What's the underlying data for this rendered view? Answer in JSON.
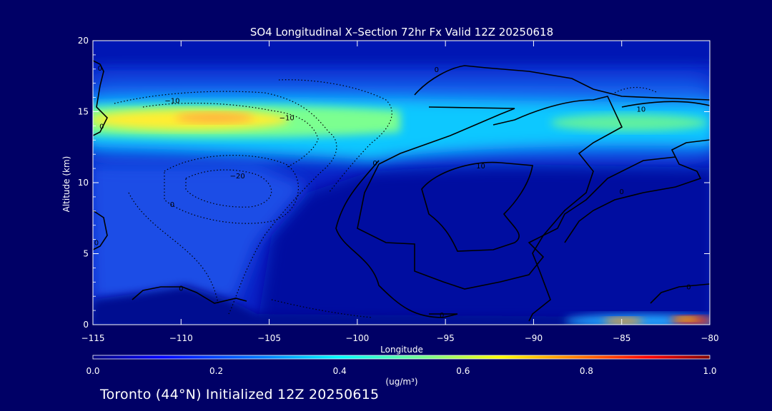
{
  "chart_data": {
    "type": "heatmap",
    "title": "SO4 Longitudinal X–Section 72hr  Fx Valid 12Z 20250618",
    "xlabel": "Longitude",
    "ylabel": "Altitude (km)",
    "xlim": [
      -115,
      -80
    ],
    "ylim": [
      0,
      20
    ],
    "x_ticks": [
      "−115",
      "−110",
      "−105",
      "−100",
      "−95",
      "−90",
      "−85",
      "−80"
    ],
    "x_tick_values": [
      -115,
      -110,
      -105,
      -100,
      -95,
      -90,
      -85,
      -80
    ],
    "y_ticks": [
      "0",
      "5",
      "10",
      "15",
      "20"
    ],
    "y_tick_values": [
      0,
      5,
      10,
      15,
      20
    ],
    "colorbar": {
      "min": 0.0,
      "max": 1.0,
      "label": "(ug/m³)",
      "ticks": [
        "0.0",
        "0.2",
        "0.4",
        "0.6",
        "0.8",
        "1.0"
      ],
      "tick_values": [
        0.0,
        0.2,
        0.4,
        0.6,
        0.8,
        1.0
      ]
    },
    "features": [
      {
        "lon": -114.5,
        "alt": 14.6,
        "value": 0.55
      },
      {
        "lon": -111,
        "alt": 14.6,
        "value": 0.55
      },
      {
        "lon": -108,
        "alt": 14.6,
        "value": 0.65
      },
      {
        "lon": -104.5,
        "alt": 14.6,
        "value": 0.5
      },
      {
        "lon": -101,
        "alt": 14.0,
        "value": 0.42
      },
      {
        "lon": -97,
        "alt": 14.6,
        "value": 0.35
      },
      {
        "lon": -92,
        "alt": 14.8,
        "value": 0.32
      },
      {
        "lon": -86,
        "alt": 14.3,
        "value": 0.4
      },
      {
        "lon": -82,
        "alt": 14.0,
        "value": 0.42
      },
      {
        "lon": -85,
        "alt": 0.3,
        "value": 0.78
      },
      {
        "lon": -81,
        "alt": 0.3,
        "value": 0.9
      }
    ],
    "contour_labels": [
      {
        "text": "0",
        "lon": -114.6,
        "alt": 18.1
      },
      {
        "text": "0",
        "lon": -114.5,
        "alt": 14.0
      },
      {
        "text": "−10",
        "lon": -110.5,
        "alt": 15.8
      },
      {
        "text": "−10",
        "lon": -104.0,
        "alt": 14.6
      },
      {
        "text": "−20",
        "lon": -106.8,
        "alt": 10.5
      },
      {
        "text": "0",
        "lon": -99.0,
        "alt": 11.4
      },
      {
        "text": "0",
        "lon": -95.5,
        "alt": 18.0
      },
      {
        "text": "10",
        "lon": -93.0,
        "alt": 11.2
      },
      {
        "text": "10",
        "lon": -83.9,
        "alt": 15.2
      },
      {
        "text": "0",
        "lon": -85.0,
        "alt": 9.4
      },
      {
        "text": "0",
        "lon": -110.5,
        "alt": 8.5
      },
      {
        "text": "0",
        "lon": -114.8,
        "alt": 5.8
      },
      {
        "text": "0",
        "lon": -110.0,
        "alt": 2.6
      },
      {
        "text": "0",
        "lon": -95.2,
        "alt": 0.7
      },
      {
        "text": "0",
        "lon": -81.2,
        "alt": 2.7
      }
    ]
  },
  "footer": {
    "caption": "Toronto (44°N) Initialized 12Z 20250615"
  },
  "colors": {
    "background": "#000066",
    "text": "#ffffff",
    "contour": "#000000"
  }
}
